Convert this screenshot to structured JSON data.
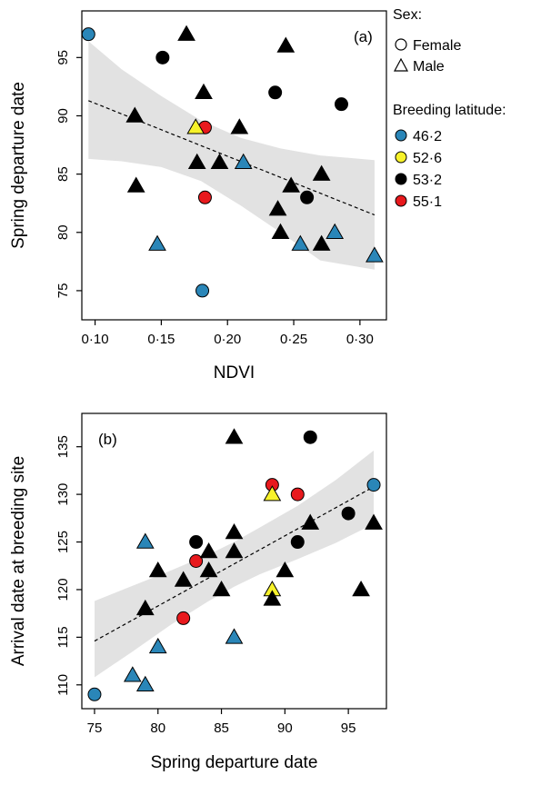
{
  "colors": {
    "46·2": "#2a86b8",
    "52·6": "#f7f22a",
    "53·2": "#000000",
    "55·1": "#e8191d",
    "band": "#e2e2e2"
  },
  "legend": {
    "sex_title": "Sex:",
    "sex_items": [
      {
        "label": "Female",
        "shape": "circle"
      },
      {
        "label": "Male",
        "shape": "triangle"
      }
    ],
    "lat_title": "Breeding latitude:",
    "lat_items": [
      "46·2",
      "52·6",
      "53·2",
      "55·1"
    ]
  },
  "chart_data": [
    {
      "type": "scatter",
      "panel_label": "(a)",
      "xlabel": "NDVI",
      "ylabel": "Spring departure date",
      "xlim": [
        0.09,
        0.32
      ],
      "ylim": [
        72.5,
        99
      ],
      "xticks": [
        0.1,
        0.15,
        0.2,
        0.25,
        0.3
      ],
      "xtick_labels": [
        "0·10",
        "0·15",
        "0·20",
        "0·25",
        "0·30"
      ],
      "yticks": [
        75,
        80,
        85,
        90,
        95
      ],
      "ytick_labels": [
        "75",
        "80",
        "85",
        "90",
        "95"
      ],
      "grid": false,
      "fit_line": {
        "x": [
          0.095,
          0.311
        ],
        "y": [
          91.3,
          81.5
        ]
      },
      "confidence_band": {
        "x": [
          0.095,
          0.12,
          0.15,
          0.18,
          0.21,
          0.24,
          0.27,
          0.311
        ],
        "upper": [
          96.4,
          94.0,
          91.7,
          89.6,
          88.1,
          87.2,
          86.6,
          86.2
        ],
        "lower": [
          86.3,
          86.1,
          85.6,
          84.4,
          82.3,
          80.0,
          77.6,
          76.8
        ]
      },
      "points": [
        {
          "x": 0.095,
          "y": 97,
          "sex": "Female",
          "lat": "46·2"
        },
        {
          "x": 0.181,
          "y": 75,
          "sex": "Female",
          "lat": "46·2"
        },
        {
          "x": 0.151,
          "y": 95,
          "sex": "Female",
          "lat": "53·2"
        },
        {
          "x": 0.236,
          "y": 92,
          "sex": "Female",
          "lat": "53·2"
        },
        {
          "x": 0.286,
          "y": 91,
          "sex": "Female",
          "lat": "53·2"
        },
        {
          "x": 0.26,
          "y": 83,
          "sex": "Female",
          "lat": "53·2"
        },
        {
          "x": 0.183,
          "y": 89,
          "sex": "Female",
          "lat": "55·1"
        },
        {
          "x": 0.183,
          "y": 83,
          "sex": "Female",
          "lat": "55·1"
        },
        {
          "x": 0.176,
          "y": 89,
          "sex": "Male",
          "lat": "52·6"
        },
        {
          "x": 0.169,
          "y": 97,
          "sex": "Male",
          "lat": "53·2"
        },
        {
          "x": 0.244,
          "y": 96,
          "sex": "Male",
          "lat": "53·2"
        },
        {
          "x": 0.182,
          "y": 92,
          "sex": "Male",
          "lat": "53·2"
        },
        {
          "x": 0.13,
          "y": 90,
          "sex": "Male",
          "lat": "53·2"
        },
        {
          "x": 0.209,
          "y": 89,
          "sex": "Male",
          "lat": "53·2"
        },
        {
          "x": 0.177,
          "y": 86,
          "sex": "Male",
          "lat": "53·2"
        },
        {
          "x": 0.194,
          "y": 86,
          "sex": "Male",
          "lat": "53·2"
        },
        {
          "x": 0.271,
          "y": 85,
          "sex": "Male",
          "lat": "53·2"
        },
        {
          "x": 0.131,
          "y": 84,
          "sex": "Male",
          "lat": "53·2"
        },
        {
          "x": 0.248,
          "y": 84,
          "sex": "Male",
          "lat": "53·2"
        },
        {
          "x": 0.238,
          "y": 82,
          "sex": "Male",
          "lat": "53·2"
        },
        {
          "x": 0.24,
          "y": 80,
          "sex": "Male",
          "lat": "53·2"
        },
        {
          "x": 0.271,
          "y": 79,
          "sex": "Male",
          "lat": "53·2"
        },
        {
          "x": 0.212,
          "y": 86,
          "sex": "Male",
          "lat": "46·2"
        },
        {
          "x": 0.147,
          "y": 79,
          "sex": "Male",
          "lat": "46·2"
        },
        {
          "x": 0.255,
          "y": 79,
          "sex": "Male",
          "lat": "46·2"
        },
        {
          "x": 0.281,
          "y": 80,
          "sex": "Male",
          "lat": "46·2"
        },
        {
          "x": 0.311,
          "y": 78,
          "sex": "Male",
          "lat": "46·2"
        }
      ]
    },
    {
      "type": "scatter",
      "panel_label": "(b)",
      "xlabel": "Spring departure date",
      "ylabel": "Arrival date at breeding site",
      "xlim": [
        74,
        98
      ],
      "ylim": [
        107.5,
        138.5
      ],
      "xticks": [
        75,
        80,
        85,
        90,
        95
      ],
      "xtick_labels": [
        "75",
        "80",
        "85",
        "90",
        "95"
      ],
      "yticks": [
        110,
        115,
        120,
        125,
        130,
        135
      ],
      "ytick_labels": [
        "110",
        "115",
        "120",
        "125",
        "130",
        "135"
      ],
      "grid": false,
      "fit_line": {
        "x": [
          75,
          97
        ],
        "y": [
          114.6,
          130.8
        ]
      },
      "confidence_band": {
        "x": [
          75,
          78,
          81,
          84,
          86,
          88,
          91,
          94,
          97
        ],
        "upper": [
          118.8,
          120.4,
          122.0,
          123.7,
          125.0,
          126.5,
          128.8,
          131.5,
          134.6
        ],
        "lower": [
          110.8,
          113.5,
          116.3,
          118.8,
          120.3,
          121.6,
          123.2,
          124.9,
          126.9
        ]
      },
      "points": [
        {
          "x": 75,
          "y": 109,
          "sex": "Female",
          "lat": "46·2"
        },
        {
          "x": 97,
          "y": 131,
          "sex": "Female",
          "lat": "46·2"
        },
        {
          "x": 92,
          "y": 136,
          "sex": "Female",
          "lat": "53·2"
        },
        {
          "x": 95,
          "y": 128,
          "sex": "Female",
          "lat": "53·2"
        },
        {
          "x": 83,
          "y": 125,
          "sex": "Female",
          "lat": "53·2"
        },
        {
          "x": 91,
          "y": 125,
          "sex": "Female",
          "lat": "53·2"
        },
        {
          "x": 89,
          "y": 131,
          "sex": "Female",
          "lat": "55·1"
        },
        {
          "x": 91,
          "y": 130,
          "sex": "Female",
          "lat": "55·1"
        },
        {
          "x": 83,
          "y": 123,
          "sex": "Female",
          "lat": "55·1"
        },
        {
          "x": 82,
          "y": 117,
          "sex": "Female",
          "lat": "55·1"
        },
        {
          "x": 89,
          "y": 130,
          "sex": "Male",
          "lat": "52·6"
        },
        {
          "x": 89,
          "y": 120,
          "sex": "Male",
          "lat": "52·6"
        },
        {
          "x": 86,
          "y": 136,
          "sex": "Male",
          "lat": "53·2"
        },
        {
          "x": 92,
          "y": 127,
          "sex": "Male",
          "lat": "53·2"
        },
        {
          "x": 97,
          "y": 127,
          "sex": "Male",
          "lat": "53·2"
        },
        {
          "x": 86,
          "y": 126,
          "sex": "Male",
          "lat": "53·2"
        },
        {
          "x": 84,
          "y": 124,
          "sex": "Male",
          "lat": "53·2"
        },
        {
          "x": 86,
          "y": 124,
          "sex": "Male",
          "lat": "53·2"
        },
        {
          "x": 80,
          "y": 122,
          "sex": "Male",
          "lat": "53·2"
        },
        {
          "x": 84,
          "y": 122,
          "sex": "Male",
          "lat": "53·2"
        },
        {
          "x": 90,
          "y": 122,
          "sex": "Male",
          "lat": "53·2"
        },
        {
          "x": 82,
          "y": 121,
          "sex": "Male",
          "lat": "53·2"
        },
        {
          "x": 85,
          "y": 120,
          "sex": "Male",
          "lat": "53·2"
        },
        {
          "x": 96,
          "y": 120,
          "sex": "Male",
          "lat": "53·2"
        },
        {
          "x": 89,
          "y": 119,
          "sex": "Male",
          "lat": "53·2"
        },
        {
          "x": 79,
          "y": 118,
          "sex": "Male",
          "lat": "53·2"
        },
        {
          "x": 79,
          "y": 125,
          "sex": "Male",
          "lat": "46·2"
        },
        {
          "x": 86,
          "y": 115,
          "sex": "Male",
          "lat": "46·2"
        },
        {
          "x": 80,
          "y": 114,
          "sex": "Male",
          "lat": "46·2"
        },
        {
          "x": 78,
          "y": 111,
          "sex": "Male",
          "lat": "46·2"
        },
        {
          "x": 79,
          "y": 110,
          "sex": "Male",
          "lat": "46·2"
        }
      ]
    }
  ]
}
